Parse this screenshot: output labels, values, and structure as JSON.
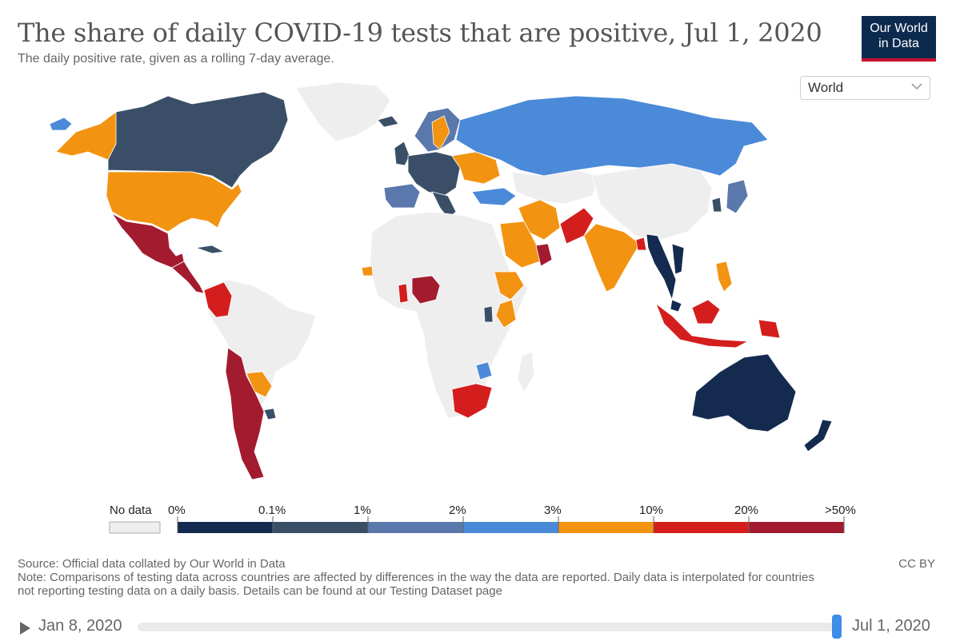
{
  "header": {
    "title": "The share of daily COVID-19 tests that are positive, Jul 1, 2020",
    "subtitle": "The daily positive rate, given as a rolling 7-day average."
  },
  "logo": {
    "line1": "Our World",
    "line2": "in Data"
  },
  "region_selector": {
    "selected": "World"
  },
  "legend": {
    "no_data_label": "No data",
    "no_data_color": "#eeeeee",
    "bins": [
      {
        "from": "0%",
        "to": "0.1%",
        "color": "#142b4f"
      },
      {
        "from": "0.1%",
        "to": "1%",
        "color": "#3a4f67"
      },
      {
        "from": "1%",
        "to": "2%",
        "color": "#5a78ab"
      },
      {
        "from": "2%",
        "to": "3%",
        "color": "#4a8ad8"
      },
      {
        "from": "3%",
        "to": "10%",
        "color": "#f39312"
      },
      {
        "from": "10%",
        "to": "20%",
        "color": "#d41e1e"
      },
      {
        "from": "20%",
        "to": ">50%",
        "color": "#a31b2f"
      }
    ],
    "tick_labels": [
      "0%",
      "0.1%",
      "1%",
      "2%",
      "3%",
      "10%",
      "20%",
      ">50%"
    ]
  },
  "colors": {
    "no_data": "#eeeeee",
    "ocean": "#ffffff",
    "dark_navy": "#142b4f",
    "slate": "#3a4f67",
    "steel": "#5a78ab",
    "blue": "#4a8ad8",
    "orange": "#f39312",
    "red": "#d41e1e",
    "crimson": "#a31b2f"
  },
  "footer": {
    "source": "Source: Official data collated by Our World in Data",
    "note_line1": "Note: Comparisons of testing data across countries are affected by differences in the way the data are reported. Daily data is interpolated for countries",
    "note_line2": "not reporting testing data on a daily basis. Details can be found at our Testing Dataset page",
    "license": "CC BY"
  },
  "timeline": {
    "start_date": "Jan 8, 2020",
    "end_date": "Jul 1, 2020",
    "position": 1.0
  }
}
